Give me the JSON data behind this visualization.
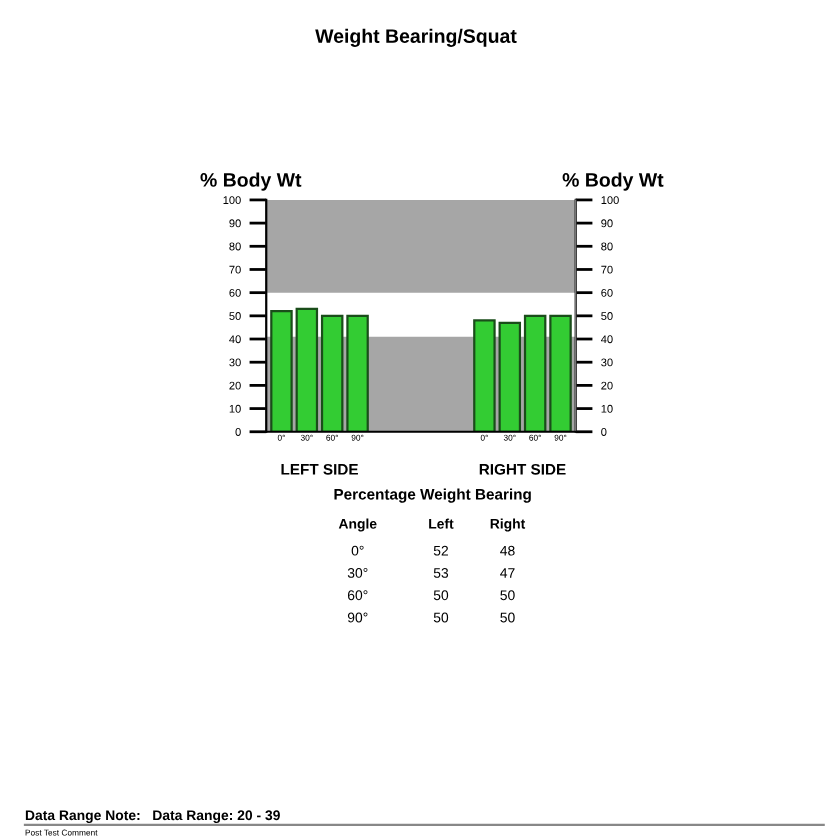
{
  "chart_data": {
    "type": "bar",
    "title": "Weight Bearing/Squat",
    "categories": [
      "0°",
      "30°",
      "60°",
      "90°",
      null,
      null,
      null,
      null,
      "0°",
      "30°",
      "60°",
      "90°"
    ],
    "values": [
      52,
      53,
      50,
      50,
      null,
      null,
      null,
      null,
      48,
      47,
      50,
      50
    ],
    "color": "#33cc33",
    "ylabel": "% Body Wt",
    "y2label": "% Body Wt",
    "ylim": [
      0,
      100
    ],
    "yticks": [
      0,
      10,
      20,
      30,
      40,
      50,
      60,
      70,
      80,
      90,
      100
    ],
    "y2lim": [
      0,
      100
    ],
    "y2ticks": [
      0,
      10,
      20,
      30,
      40,
      50,
      60,
      70,
      80,
      90,
      100
    ],
    "bands": [
      {
        "axis": "y",
        "from": 60,
        "to": 100,
        "color": "#a6a6a6"
      },
      {
        "axis": "y",
        "from": 0,
        "to": 41,
        "color": "#a6a6a6"
      }
    ],
    "grid": false,
    "annotations": [
      "LEFT SIDE",
      "RIGHT SIDE",
      "Percentage Weight Bearing",
      "Angle",
      "Left",
      "Right",
      "0°",
      "52",
      "48",
      "30°",
      "53",
      "47",
      "60°",
      "50",
      "50",
      "90°",
      "50",
      "50",
      "Data Range Note:   Data Range: 20 - 39",
      "Post Test Comment"
    ]
  }
}
